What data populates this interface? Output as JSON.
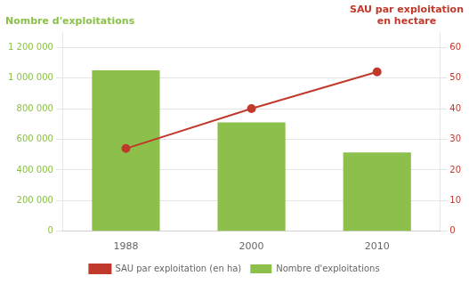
{
  "chart_data": {
    "type": "bar",
    "ylabel": "Nombre d'exploitations",
    "y2label": "SAU par exploitation\nen hectare",
    "categories": [
      "1988",
      "2000",
      "2010"
    ],
    "series": [
      {
        "name": "Nombre d'exploitations",
        "type": "bar",
        "color": "#8dc04a",
        "values": [
          1050000,
          710000,
          514000
        ]
      },
      {
        "name": "SAU par exploitation (en ha)",
        "type": "line",
        "color": "#c0392b",
        "marker": "circle",
        "line_style": "solid",
        "axis": "y2",
        "values": [
          27,
          40,
          52
        ]
      }
    ],
    "ylim": [
      0,
      1300000
    ],
    "yticks": [
      0,
      {
        "value": 200000,
        "label": "200 000"
      },
      {
        "value": 400000,
        "label": "400 000"
      },
      {
        "value": 600000,
        "label": "600 000"
      },
      {
        "value": 800000,
        "label": "800 000"
      },
      {
        "value": 1000000,
        "label": "1 000 000"
      },
      {
        "value": 1200000,
        "label": "1 200 000"
      }
    ],
    "y2lim": [
      0,
      65
    ],
    "y2ticks": [
      0,
      10,
      20,
      30,
      40,
      50,
      60
    ],
    "grid": true,
    "legend": "bottom"
  }
}
